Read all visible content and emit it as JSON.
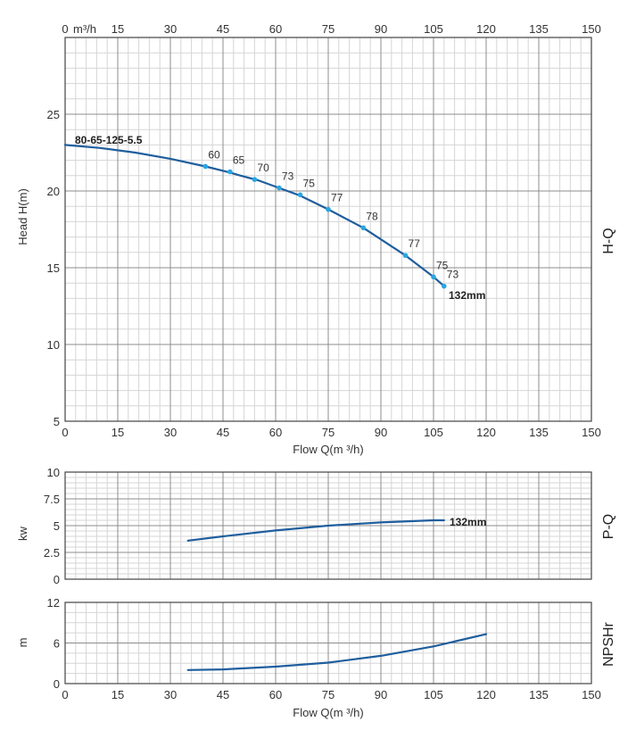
{
  "colors": {
    "curve": "#1f5e9e",
    "points": "#2aa6e0",
    "grid_major": "#8c8c8c",
    "grid_minor": "#d6d6d6",
    "frame": "#444444"
  },
  "chart_data": [
    {
      "type": "line",
      "model_label": "80-65-125-5.5",
      "side_label": "H-Q",
      "ylabel": "Head H(m)",
      "xlabel": "Flow Q(m ³/h)",
      "top_unit_label": "m³/h",
      "xlim": [
        0,
        150
      ],
      "ylim": [
        5,
        30
      ],
      "grid": true,
      "x_ticks": [
        "0",
        "15",
        "30",
        "45",
        "60",
        "75",
        "90",
        "105",
        "120",
        "135",
        "150"
      ],
      "y_ticks": [
        "5",
        "10",
        "15",
        "20",
        "25"
      ],
      "series": [
        {
          "name": "132mm",
          "x": [
            0,
            10,
            20,
            30,
            40,
            47,
            50,
            55,
            61,
            67,
            75,
            85,
            97,
            105,
            108
          ],
          "y": [
            23,
            22.8,
            22.5,
            22.1,
            21.6,
            21.2,
            21.0,
            20.7,
            20.2,
            19.7,
            18.8,
            17.6,
            15.8,
            14.4,
            13.8
          ]
        }
      ],
      "efficiency_points": [
        {
          "x": 40,
          "y": 21.6,
          "label": "60"
        },
        {
          "x": 47,
          "y": 21.25,
          "label": "65"
        },
        {
          "x": 54,
          "y": 20.75,
          "label": "70"
        },
        {
          "x": 61,
          "y": 20.2,
          "label": "73"
        },
        {
          "x": 67,
          "y": 19.75,
          "label": "75"
        },
        {
          "x": 75,
          "y": 18.8,
          "label": "77"
        },
        {
          "x": 85,
          "y": 17.6,
          "label": "78"
        },
        {
          "x": 97,
          "y": 15.8,
          "label": "77"
        },
        {
          "x": 105,
          "y": 14.4,
          "label": "75"
        },
        {
          "x": 108,
          "y": 13.8,
          "label": "73"
        }
      ]
    },
    {
      "type": "line",
      "side_label": "P-Q",
      "ylabel": "kw",
      "xlim": [
        0,
        150
      ],
      "ylim": [
        0,
        10
      ],
      "grid": true,
      "y_ticks": [
        "0",
        "2.5",
        "5",
        "7.5",
        "10"
      ],
      "series": [
        {
          "name": "132mm",
          "x": [
            35,
            45,
            60,
            75,
            90,
            105,
            108
          ],
          "y": [
            3.6,
            4.0,
            4.55,
            5.0,
            5.3,
            5.5,
            5.5
          ]
        }
      ]
    },
    {
      "type": "line",
      "side_label": "NPSHr",
      "ylabel": "m",
      "xlabel": "Flow Q(m ³/h)",
      "xlim": [
        0,
        150
      ],
      "ylim": [
        0,
        12
      ],
      "grid": true,
      "x_ticks": [
        "0",
        "15",
        "30",
        "45",
        "60",
        "75",
        "90",
        "105",
        "120",
        "135",
        "150"
      ],
      "y_ticks": [
        "0",
        "6",
        "12"
      ],
      "series": [
        {
          "name": "",
          "x": [
            35,
            45,
            60,
            75,
            90,
            105,
            120
          ],
          "y": [
            2.0,
            2.1,
            2.5,
            3.1,
            4.1,
            5.5,
            7.3
          ]
        }
      ]
    }
  ]
}
